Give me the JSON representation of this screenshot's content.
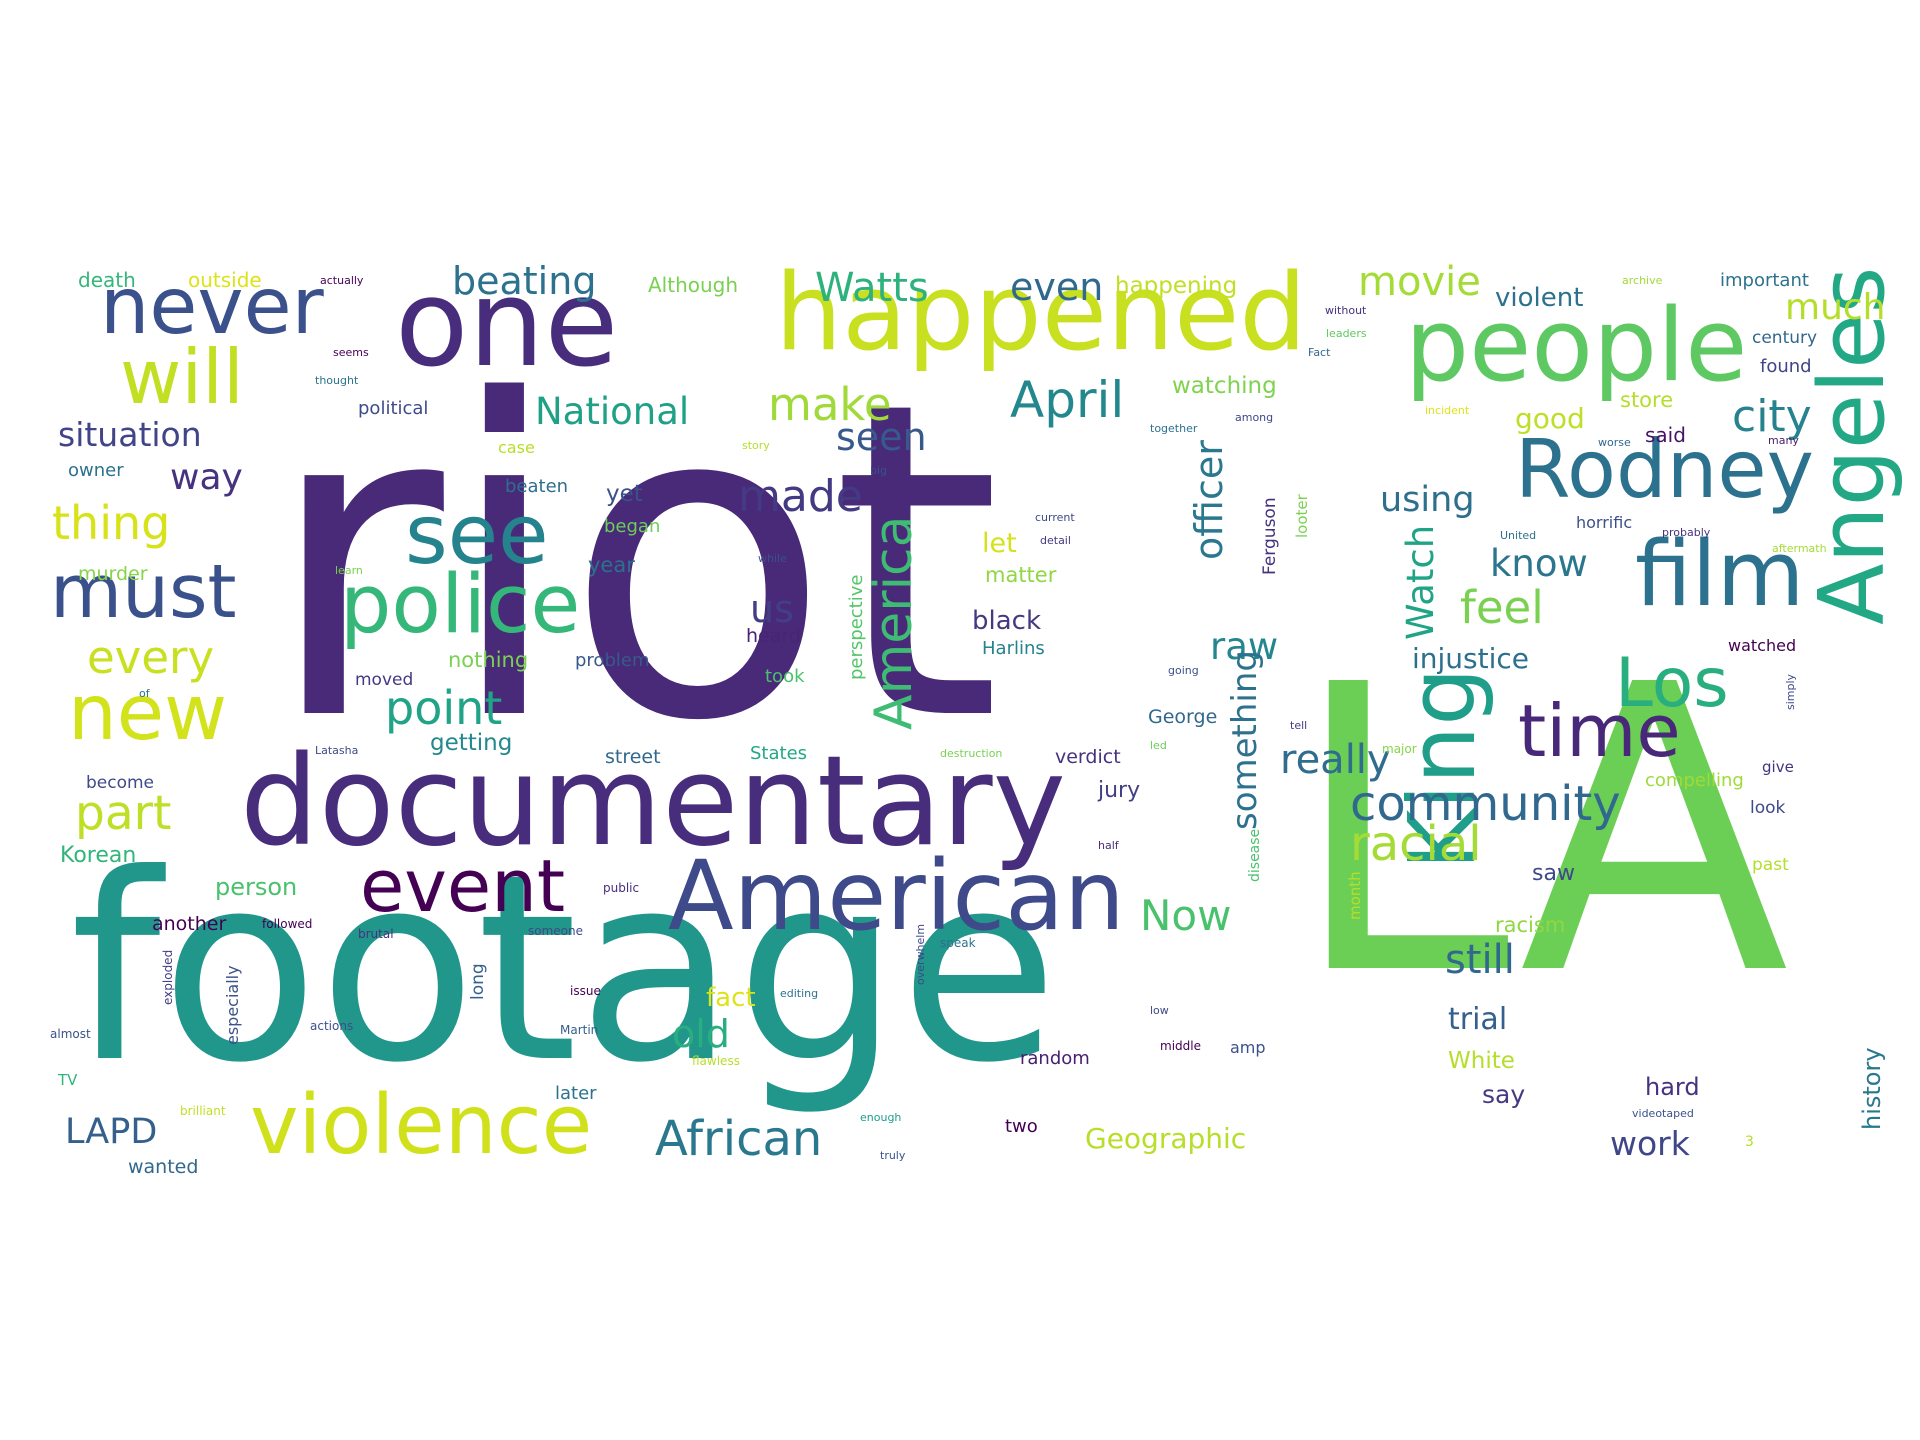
{
  "cloud": {
    "words": [
      {
        "text": "riot",
        "color": "#482a78"
      },
      {
        "text": "LA",
        "color": "#6ccf55"
      },
      {
        "text": "footage",
        "color": "#21968b"
      },
      {
        "text": "documentary",
        "color": "#472d7b"
      },
      {
        "text": "one",
        "color": "#472d7b"
      },
      {
        "text": "happened",
        "color": "#c8e020"
      },
      {
        "text": "people",
        "color": "#5ec962"
      },
      {
        "text": "American",
        "color": "#3e4a89"
      },
      {
        "text": "violence",
        "color": "#d0e11c"
      },
      {
        "text": "film",
        "color": "#2c728e"
      },
      {
        "text": "never",
        "color": "#3b518b"
      },
      {
        "text": "Rodney",
        "color": "#2c728e"
      },
      {
        "text": "see",
        "color": "#25838e"
      },
      {
        "text": "police",
        "color": "#35b779"
      },
      {
        "text": "must",
        "color": "#3b518b"
      },
      {
        "text": "King",
        "color": "#1f9e89"
      },
      {
        "text": "Angeles",
        "color": "#22a884"
      },
      {
        "text": "will",
        "color": "#c2df23"
      },
      {
        "text": "new",
        "color": "#d2e21b"
      },
      {
        "text": "event",
        "color": "#440154"
      },
      {
        "text": "Los",
        "color": "#29af7f"
      },
      {
        "text": "time",
        "color": "#482878"
      },
      {
        "text": "African",
        "color": "#29788e"
      },
      {
        "text": "America",
        "color": "#3fbc73"
      },
      {
        "text": "community",
        "color": "#31688e"
      },
      {
        "text": "April",
        "color": "#23888e"
      },
      {
        "text": "racial",
        "color": "#a5db36"
      },
      {
        "text": "point",
        "color": "#20a386"
      },
      {
        "text": "part",
        "color": "#bddf26"
      },
      {
        "text": "thing",
        "color": "#d8e219"
      },
      {
        "text": "every",
        "color": "#c8e020"
      },
      {
        "text": "make",
        "color": "#9fda3a"
      },
      {
        "text": "made",
        "color": "#443a83"
      },
      {
        "text": "National",
        "color": "#1fa187"
      },
      {
        "text": "Watts",
        "color": "#2db27d"
      },
      {
        "text": "beating",
        "color": "#2c728e"
      },
      {
        "text": "movie",
        "color": "#a5db36"
      },
      {
        "text": "even",
        "color": "#31688e"
      },
      {
        "text": "situation",
        "color": "#414487"
      },
      {
        "text": "seen",
        "color": "#38598c"
      },
      {
        "text": "officer",
        "color": "#2a788e"
      },
      {
        "text": "feel",
        "color": "#7ad151"
      },
      {
        "text": "city",
        "color": "#26828e"
      },
      {
        "text": "Now",
        "color": "#4ac16d"
      },
      {
        "text": "really",
        "color": "#2f6c8e"
      },
      {
        "text": "still",
        "color": "#31688e"
      },
      {
        "text": "raw",
        "color": "#24868e"
      },
      {
        "text": "something",
        "color": "#2c728e"
      },
      {
        "text": "way",
        "color": "#46327e"
      },
      {
        "text": "much",
        "color": "#b5de2b"
      },
      {
        "text": "know",
        "color": "#2b758e"
      },
      {
        "text": "using",
        "color": "#2e6f8e"
      },
      {
        "text": "Watch",
        "color": "#20a486"
      },
      {
        "text": "injustice",
        "color": "#2d708e"
      },
      {
        "text": "old",
        "color": "#29af7f"
      },
      {
        "text": "LAPD",
        "color": "#355f8d"
      },
      {
        "text": "work",
        "color": "#3f4788"
      },
      {
        "text": "us",
        "color": "#433e85"
      },
      {
        "text": "black",
        "color": "#443983"
      },
      {
        "text": "Geographic",
        "color": "#b8de29"
      },
      {
        "text": "getting",
        "color": "#23898e"
      },
      {
        "text": "trial",
        "color": "#355f8d"
      },
      {
        "text": "history",
        "color": "#2a788e"
      },
      {
        "text": "violent",
        "color": "#2c728e"
      },
      {
        "text": "Although",
        "color": "#7ad151"
      },
      {
        "text": "happening",
        "color": "#c0df25"
      },
      {
        "text": "watching",
        "color": "#7fd34e"
      },
      {
        "text": "matter",
        "color": "#90d743"
      },
      {
        "text": "let",
        "color": "#d5e21a"
      },
      {
        "text": "yet",
        "color": "#3b518b"
      },
      {
        "text": "year",
        "color": "#2e6e8e"
      },
      {
        "text": "Ferguson",
        "color": "#46317e"
      },
      {
        "text": "perspective",
        "color": "#52c569"
      },
      {
        "text": "nothing",
        "color": "#7ad151"
      },
      {
        "text": "problem",
        "color": "#38598c"
      },
      {
        "text": "Harlins",
        "color": "#26828e"
      },
      {
        "text": "George",
        "color": "#31688e"
      },
      {
        "text": "verdict",
        "color": "#46327e"
      },
      {
        "text": "street",
        "color": "#31688e"
      },
      {
        "text": "States",
        "color": "#22a884"
      },
      {
        "text": "jury",
        "color": "#423f85"
      },
      {
        "text": "Korean",
        "color": "#31b57b"
      },
      {
        "text": "person",
        "color": "#4ac16d"
      },
      {
        "text": "another",
        "color": "#440154"
      },
      {
        "text": "especially",
        "color": "#3b528b"
      },
      {
        "text": "fact",
        "color": "#dde318"
      },
      {
        "text": "say",
        "color": "#443a83"
      },
      {
        "text": "hard",
        "color": "#46337f"
      },
      {
        "text": "White",
        "color": "#b5de2b"
      },
      {
        "text": "racism",
        "color": "#90d743"
      },
      {
        "text": "saw",
        "color": "#3e4989"
      },
      {
        "text": "good",
        "color": "#bddf26"
      },
      {
        "text": "said",
        "color": "#471365"
      },
      {
        "text": "store",
        "color": "#b5de2b"
      },
      {
        "text": "death",
        "color": "#35b779"
      },
      {
        "text": "outside",
        "color": "#dde318"
      },
      {
        "text": "murder",
        "color": "#86d549"
      },
      {
        "text": "owner",
        "color": "#2c728e"
      },
      {
        "text": "beaten",
        "color": "#2e6e8e"
      },
      {
        "text": "began",
        "color": "#6ccd5a"
      },
      {
        "text": "heard",
        "color": "#482475"
      },
      {
        "text": "took",
        "color": "#4ac16d"
      },
      {
        "text": "moved",
        "color": "#443983"
      },
      {
        "text": "become",
        "color": "#3e4a89"
      },
      {
        "text": "later",
        "color": "#2c728e"
      },
      {
        "text": "random",
        "color": "#482071"
      },
      {
        "text": "two",
        "color": "#440154"
      },
      {
        "text": "wanted",
        "color": "#31688e"
      },
      {
        "text": "important",
        "color": "#2c728e"
      },
      {
        "text": "century",
        "color": "#31688e"
      },
      {
        "text": "found",
        "color": "#414487"
      },
      {
        "text": "horrific",
        "color": "#3b518b"
      },
      {
        "text": "watched",
        "color": "#440154"
      },
      {
        "text": "compelling",
        "color": "#a0da39"
      },
      {
        "text": "look",
        "color": "#3e4989"
      },
      {
        "text": "past",
        "color": "#b5de2b"
      },
      {
        "text": "long",
        "color": "#355f8d"
      },
      {
        "text": "political",
        "color": "#3e4a89"
      },
      {
        "text": "case",
        "color": "#b8de29"
      },
      {
        "text": "looter",
        "color": "#7ad151"
      },
      {
        "text": "month",
        "color": "#b5de2b"
      },
      {
        "text": "disease",
        "color": "#4ac16d"
      },
      {
        "text": "amp",
        "color": "#3b518b"
      },
      {
        "text": "give",
        "color": "#46337f"
      },
      {
        "text": "actually",
        "color": "#440154"
      },
      {
        "text": "TV",
        "color": "#31b57b"
      },
      {
        "text": "almost",
        "color": "#3b528b"
      },
      {
        "text": "exploded",
        "color": "#433e85"
      },
      {
        "text": "actions",
        "color": "#3b518b"
      },
      {
        "text": "Martin",
        "color": "#355f8d"
      },
      {
        "text": "brutal",
        "color": "#46327e"
      },
      {
        "text": "public",
        "color": "#472d7b"
      },
      {
        "text": "followed",
        "color": "#440154"
      },
      {
        "text": "someone",
        "color": "#3e4a89"
      },
      {
        "text": "speak",
        "color": "#2c728e"
      },
      {
        "text": "issue",
        "color": "#440154"
      },
      {
        "text": "editing",
        "color": "#2c728e"
      },
      {
        "text": "brilliant",
        "color": "#c2df23"
      },
      {
        "text": "enough",
        "color": "#1f9e89"
      },
      {
        "text": "truly",
        "color": "#3b518b"
      },
      {
        "text": "overwhelm",
        "color": "#3e4989"
      },
      {
        "text": "flawless",
        "color": "#b5de2b"
      },
      {
        "text": "middle",
        "color": "#440154"
      },
      {
        "text": "videotaped",
        "color": "#3b518b"
      },
      {
        "text": "destruction",
        "color": "#7ad151"
      },
      {
        "text": "major",
        "color": "#86d549"
      },
      {
        "text": "half",
        "color": "#472d7b"
      },
      {
        "text": "Latasha",
        "color": "#3e4a89"
      },
      {
        "text": "tell",
        "color": "#443983"
      },
      {
        "text": "going",
        "color": "#3b518b"
      },
      {
        "text": "led",
        "color": "#6ccd5a"
      },
      {
        "text": "simply",
        "color": "#3e4989"
      },
      {
        "text": "aftermath",
        "color": "#a5db36"
      },
      {
        "text": "United",
        "color": "#2c728e"
      },
      {
        "text": "probably",
        "color": "#46327e"
      },
      {
        "text": "incident",
        "color": "#dde318"
      },
      {
        "text": "worse",
        "color": "#31688e"
      },
      {
        "text": "many",
        "color": "#481f70"
      },
      {
        "text": "among",
        "color": "#3e4989"
      },
      {
        "text": "together",
        "color": "#2c728e"
      },
      {
        "text": "story",
        "color": "#b5de2b"
      },
      {
        "text": "big",
        "color": "#3b518b"
      },
      {
        "text": "thought",
        "color": "#2c728e"
      },
      {
        "text": "seems",
        "color": "#440154"
      },
      {
        "text": "learn",
        "color": "#7ad151"
      },
      {
        "text": "current",
        "color": "#3e4989"
      },
      {
        "text": "detail",
        "color": "#443983"
      },
      {
        "text": "while",
        "color": "#3b518b"
      },
      {
        "text": "Fact",
        "color": "#31688e"
      },
      {
        "text": "without",
        "color": "#46327e"
      },
      {
        "text": "leaders",
        "color": "#5ec962"
      },
      {
        "text": "archive",
        "color": "#a0da39"
      },
      {
        "text": "of",
        "color": "#2c728e"
      },
      {
        "text": "3",
        "color": "#b5de2b"
      },
      {
        "text": "low",
        "color": "#3e4989"
      }
    ]
  }
}
